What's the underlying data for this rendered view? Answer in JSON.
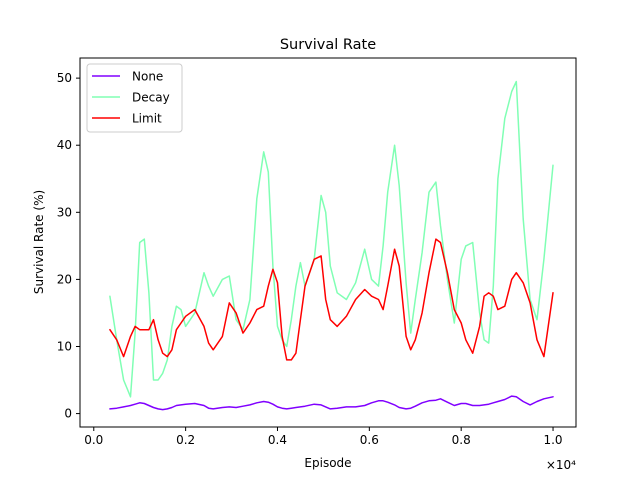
{
  "chart_data": {
    "type": "line",
    "title": "Survival Rate",
    "xlabel": "Episode",
    "ylabel": "Survival Rate (%)",
    "x_offset_text": "×10⁴",
    "xlim": [
      -300,
      10500
    ],
    "ylim": [
      -2,
      53
    ],
    "xticks": [
      0,
      2000,
      4000,
      6000,
      8000,
      10000
    ],
    "xtick_labels": [
      "0.0",
      "0.2",
      "0.4",
      "0.6",
      "0.8",
      "1.0"
    ],
    "yticks": [
      0,
      10,
      20,
      30,
      40,
      50
    ],
    "ytick_labels": [
      "0",
      "10",
      "20",
      "30",
      "40",
      "50"
    ],
    "grid": false,
    "legend_position": "upper left",
    "x": [
      350,
      500,
      650,
      800,
      900,
      1000,
      1100,
      1200,
      1300,
      1400,
      1500,
      1600,
      1700,
      1800,
      1900,
      2000,
      2200,
      2400,
      2500,
      2600,
      2800,
      2950,
      3100,
      3250,
      3400,
      3550,
      3700,
      3800,
      3900,
      4000,
      4100,
      4200,
      4300,
      4400,
      4500,
      4600,
      4800,
      4950,
      5050,
      5150,
      5300,
      5500,
      5700,
      5900,
      6050,
      6200,
      6300,
      6400,
      6550,
      6650,
      6800,
      6900,
      7000,
      7150,
      7300,
      7450,
      7550,
      7700,
      7850,
      8000,
      8100,
      8250,
      8400,
      8500,
      8600,
      8700,
      8800,
      8950,
      9100,
      9200,
      9350,
      9500,
      9650,
      9800,
      10000
    ],
    "series": [
      {
        "name": "None",
        "color": "#8000ff",
        "values": [
          0.7,
          0.8,
          1.0,
          1.2,
          1.4,
          1.6,
          1.5,
          1.2,
          0.9,
          0.7,
          0.6,
          0.7,
          0.9,
          1.2,
          1.3,
          1.4,
          1.5,
          1.2,
          0.8,
          0.7,
          0.9,
          1.0,
          0.9,
          1.1,
          1.3,
          1.6,
          1.8,
          1.7,
          1.4,
          1.0,
          0.8,
          0.7,
          0.8,
          0.9,
          1.0,
          1.1,
          1.4,
          1.3,
          1.0,
          0.7,
          0.8,
          1.0,
          1.0,
          1.2,
          1.6,
          1.9,
          1.9,
          1.7,
          1.3,
          0.9,
          0.7,
          0.8,
          1.1,
          1.6,
          1.9,
          2.0,
          2.2,
          1.7,
          1.2,
          1.5,
          1.5,
          1.2,
          1.2,
          1.3,
          1.4,
          1.6,
          1.8,
          2.1,
          2.6,
          2.5,
          1.8,
          1.3,
          1.8,
          2.2,
          2.5
        ]
      },
      {
        "name": "Decay",
        "color": "#80ffb4",
        "values": [
          17.5,
          11.0,
          5.0,
          2.5,
          12.0,
          25.5,
          26.0,
          18.0,
          5.0,
          5.0,
          6.0,
          8.0,
          13.0,
          16.0,
          15.5,
          13.0,
          15.0,
          21.0,
          19.0,
          17.5,
          20.0,
          20.5,
          14.0,
          12.5,
          17.0,
          32.0,
          39.0,
          36.0,
          22.0,
          13.0,
          11.0,
          10.0,
          14.0,
          19.0,
          22.5,
          19.0,
          23.0,
          32.5,
          30.0,
          22.0,
          18.0,
          17.0,
          19.5,
          24.5,
          20.0,
          19.0,
          25.0,
          33.0,
          40.0,
          34.0,
          19.5,
          12.0,
          17.0,
          24.0,
          33.0,
          34.5,
          28.0,
          20.0,
          13.5,
          23.0,
          25.0,
          25.5,
          15.0,
          11.0,
          10.5,
          19.0,
          35.0,
          44.0,
          48.0,
          49.5,
          29.0,
          17.0,
          14.0,
          23.0,
          37.0
        ]
      },
      {
        "name": "Limit",
        "color": "#ff0000",
        "values": [
          12.5,
          11.0,
          8.5,
          11.5,
          13.0,
          12.5,
          12.5,
          12.5,
          14.0,
          11.0,
          9.0,
          8.5,
          9.5,
          12.5,
          13.5,
          14.5,
          15.5,
          13.0,
          10.5,
          9.5,
          11.5,
          16.5,
          15.0,
          12.0,
          13.5,
          15.5,
          16.0,
          19.0,
          21.5,
          19.5,
          11.5,
          8.0,
          8.0,
          9.0,
          14.0,
          19.0,
          23.0,
          23.5,
          17.0,
          14.0,
          13.0,
          14.5,
          17.0,
          18.5,
          17.5,
          17.0,
          15.5,
          19.0,
          24.5,
          22.0,
          11.5,
          9.5,
          11.0,
          15.0,
          21.0,
          26.0,
          25.5,
          21.0,
          15.5,
          13.5,
          11.0,
          9.0,
          13.0,
          17.5,
          18.0,
          17.5,
          15.5,
          16.0,
          20.0,
          21.0,
          19.5,
          16.5,
          11.0,
          8.5,
          18.0
        ]
      }
    ]
  }
}
